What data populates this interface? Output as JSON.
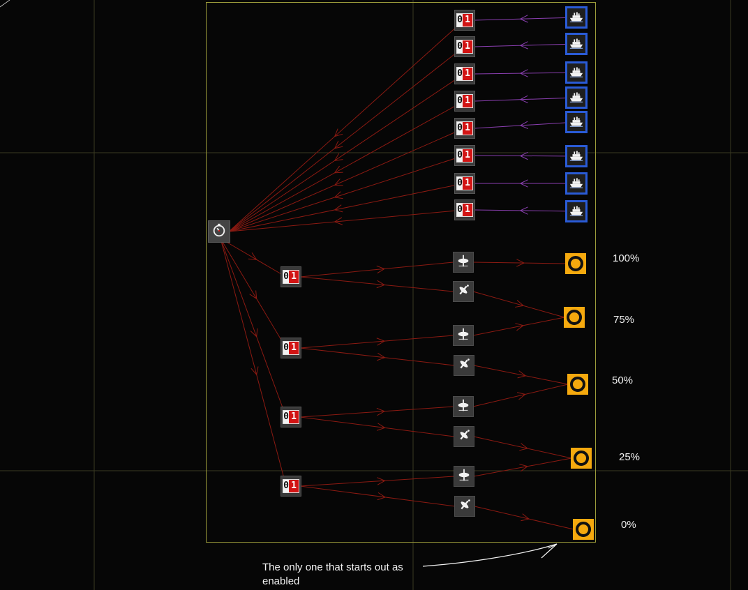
{
  "counter": {
    "digit_left": "0",
    "digit_right": "1"
  },
  "percent_labels": [
    "100%",
    "75%",
    "50%",
    "25%",
    "0%"
  ],
  "annotation": "The only one that starts out as enabled",
  "icons": {
    "timer": "stopwatch-icon",
    "counter": "binary-counter-icon",
    "ship": "ship-icon",
    "spinner_upright": "spinning-top-icon",
    "spinner_tilted": "tilted-top-icon",
    "target": "target-ring-icon"
  },
  "colors": {
    "wire_red": "#8b1a12",
    "wire_purple": "#8a3fb0",
    "ship_border": "#2a5bd6",
    "target_fill": "#f5a90e",
    "counter_red": "#d21414",
    "frame": "#9a9a3a"
  }
}
